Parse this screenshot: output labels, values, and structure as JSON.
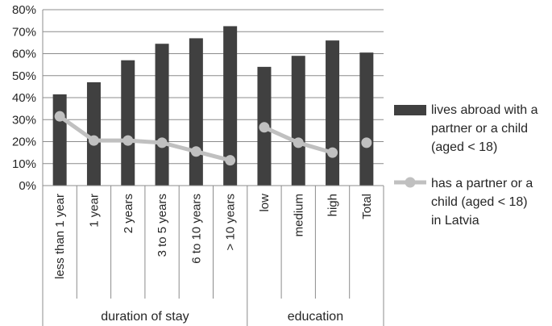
{
  "chart_data": {
    "type": "bar",
    "categories": [
      "less than 1 year",
      "1 year",
      "2 years",
      "3 to 5 years",
      "6 to 10 years",
      "> 10 years",
      "low",
      "medium",
      "high",
      "Total"
    ],
    "groups": [
      {
        "label": "duration of stay",
        "categories": [
          "less than 1 year",
          "1 year",
          "2 years",
          "3 to 5 years",
          "6 to 10 years",
          "> 10 years"
        ]
      },
      {
        "label": "education",
        "categories": [
          "low",
          "medium",
          "high",
          "Total"
        ]
      }
    ],
    "series": [
      {
        "name": "lives abroad with a partner or a child (aged < 18)",
        "type": "bar",
        "color": "#404040",
        "values": [
          41.5,
          47,
          57,
          64.5,
          67,
          72.5,
          54,
          59,
          66,
          60.5
        ]
      },
      {
        "name": "has a partner or a child (aged < 18) in Latvia",
        "type": "line",
        "color": "#c0c0c0",
        "values": [
          31.5,
          20.5,
          20.5,
          19.5,
          15.5,
          11.5,
          26.5,
          19.5,
          15,
          19.5
        ],
        "segments": [
          [
            0,
            5
          ],
          [
            6,
            8
          ],
          [
            9,
            9
          ]
        ]
      }
    ],
    "y_ticks": [
      "0%",
      "10%",
      "20%",
      "30%",
      "40%",
      "50%",
      "60%",
      "70%",
      "80%"
    ],
    "ylim": [
      0,
      80
    ],
    "grid": true,
    "legend_position": "right",
    "legend_lines": [
      [
        "lives abroad with a",
        "partner or a child",
        "(aged < 18)"
      ],
      [
        "has a partner or  a",
        "child (aged < 18)",
        "in Latvia"
      ]
    ]
  }
}
